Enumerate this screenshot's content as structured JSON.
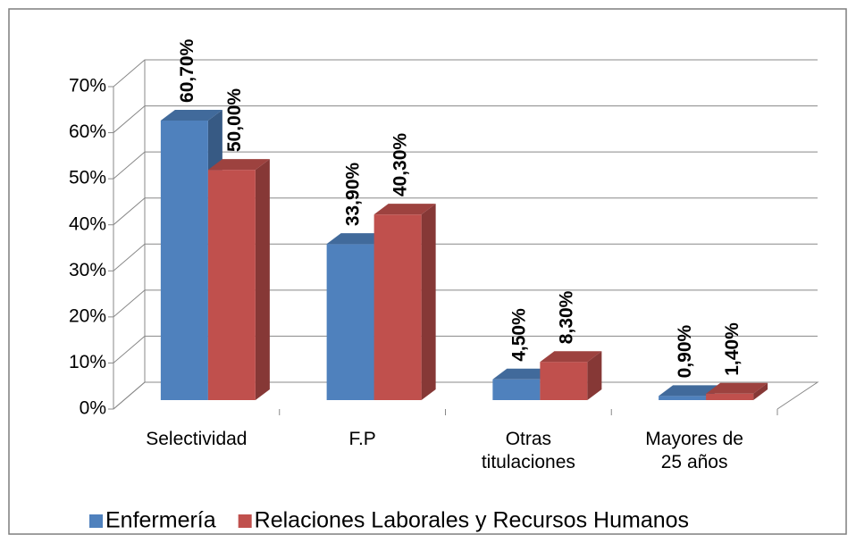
{
  "chart_data": {
    "type": "bar3d",
    "categories": [
      "Selectividad",
      "F.P",
      "Otras titulaciones",
      "Mayores de 25 años"
    ],
    "series": [
      {
        "name": "Enfermería",
        "color": "#4F81BD",
        "values": [
          60.7,
          33.9,
          4.5,
          0.9
        ],
        "value_labels": [
          "60,70%",
          "33,90%",
          "4,50%",
          "0,90%"
        ]
      },
      {
        "name": "Relaciones Laborales y Recursos Humanos",
        "color": "#C0504D",
        "values": [
          50.0,
          40.3,
          8.3,
          1.4
        ],
        "value_labels": [
          "50,00%",
          "40,30%",
          "8,30%",
          "1,40%"
        ]
      }
    ],
    "ylim": [
      0,
      70
    ],
    "yticks": [
      {
        "value": 0,
        "label": "0%"
      },
      {
        "value": 10,
        "label": "10%"
      },
      {
        "value": 20,
        "label": "20%"
      },
      {
        "value": 30,
        "label": "30%"
      },
      {
        "value": 40,
        "label": "40%"
      },
      {
        "value": 50,
        "label": "50%"
      },
      {
        "value": 60,
        "label": "60%"
      },
      {
        "value": 70,
        "label": "70%"
      }
    ],
    "grid": true,
    "legend": "bottom"
  }
}
